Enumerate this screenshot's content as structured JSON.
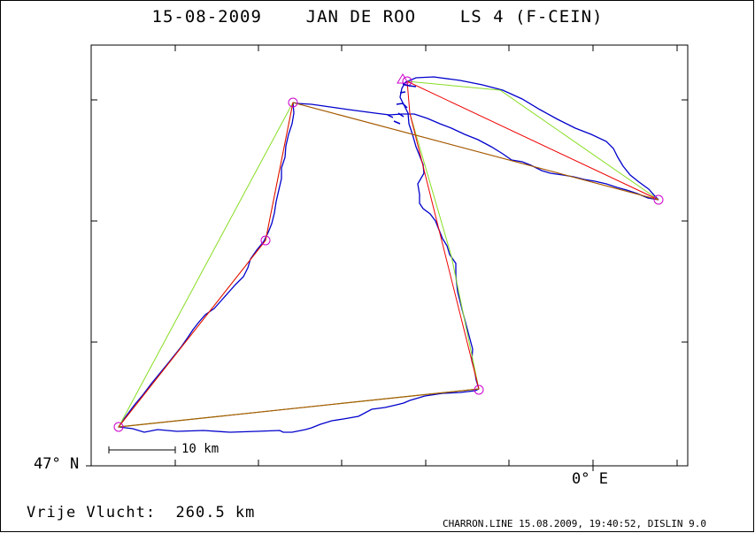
{
  "title": "15-08-2009    JAN DE ROO    LS 4 (F-CEIN)",
  "axes": {
    "lat_label": "47° N",
    "lon_label": "0° E"
  },
  "scale_bar": {
    "label": "10 km"
  },
  "distance": "Vrije Vlucht:  260.5 km",
  "footer": "CHARRON.LINE 15.08.2009, 19:40:52, DISLIN 9.0",
  "colors": {
    "track": "#0000cc",
    "task": "#ee0000",
    "optimized": "#88dd22",
    "turnpoint": "#cc00cc",
    "frame": "#000000"
  },
  "legend_icons": {
    "start": "triangle-icon",
    "turnpoint": "circle-icon"
  }
}
